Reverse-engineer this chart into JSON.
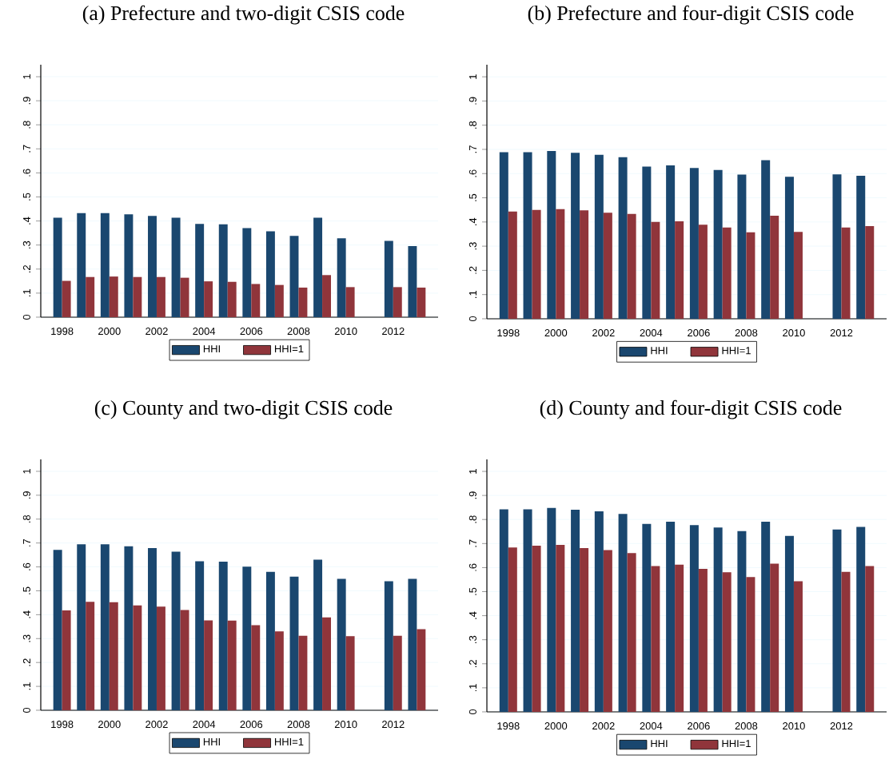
{
  "chart_data": [
    {
      "type": "bar",
      "title": "(a) Prefecture and two-digit CSIS code",
      "x": [
        1998,
        1999,
        2000,
        2001,
        2002,
        2003,
        2004,
        2005,
        2006,
        2007,
        2008,
        2009,
        2010,
        2012,
        2013
      ],
      "series": [
        {
          "name": "HHI",
          "color": "#1a476f",
          "values": [
            0.414,
            0.433,
            0.433,
            0.428,
            0.421,
            0.414,
            0.388,
            0.386,
            0.37,
            0.357,
            0.338,
            0.414,
            0.328,
            0.317,
            0.296
          ]
        },
        {
          "name": "HHI=1",
          "color": "#90353b",
          "values": [
            0.151,
            0.167,
            0.169,
            0.167,
            0.167,
            0.164,
            0.149,
            0.147,
            0.138,
            0.134,
            0.123,
            0.175,
            0.125,
            0.125,
            0.123
          ]
        }
      ],
      "xlim": [
        1997.1,
        2013.9
      ],
      "ylim": [
        0,
        1.05
      ],
      "xticks": [
        1998,
        2000,
        2002,
        2004,
        2006,
        2008,
        2010,
        2012
      ],
      "yticks": [
        0,
        {
          "value": 0.1,
          "label": ".1"
        },
        {
          "value": 0.2,
          "label": ".2"
        },
        {
          "value": 0.3,
          "label": ".3"
        },
        {
          "value": 0.4,
          "label": ".4"
        },
        {
          "value": 0.5,
          "label": ".5"
        },
        {
          "value": 0.6,
          "label": ".6"
        },
        {
          "value": 0.7,
          "label": ".7"
        },
        {
          "value": 0.8,
          "label": ".8"
        },
        {
          "value": 0.9,
          "label": ".9"
        },
        1
      ],
      "grid": "y",
      "legend": "bottom"
    },
    {
      "type": "bar",
      "title": "(b) Prefecture and four-digit CSIS code",
      "x": [
        1998,
        1999,
        2000,
        2001,
        2002,
        2003,
        2004,
        2005,
        2006,
        2007,
        2008,
        2009,
        2010,
        2012,
        2013
      ],
      "series": [
        {
          "name": "HHI",
          "color": "#1a476f",
          "values": [
            0.688,
            0.688,
            0.693,
            0.686,
            0.678,
            0.668,
            0.629,
            0.634,
            0.623,
            0.615,
            0.596,
            0.655,
            0.587,
            0.597,
            0.591
          ]
        },
        {
          "name": "HHI=1",
          "color": "#90353b",
          "values": [
            0.443,
            0.45,
            0.453,
            0.448,
            0.438,
            0.433,
            0.4,
            0.403,
            0.389,
            0.377,
            0.357,
            0.426,
            0.359,
            0.377,
            0.383
          ]
        }
      ],
      "xlim": [
        1997.1,
        2013.9
      ],
      "ylim": [
        0,
        1.05
      ],
      "xticks": [
        1998,
        2000,
        2002,
        2004,
        2006,
        2008,
        2010,
        2012
      ],
      "yticks": [
        0,
        {
          "value": 0.1,
          "label": ".1"
        },
        {
          "value": 0.2,
          "label": ".2"
        },
        {
          "value": 0.3,
          "label": ".3"
        },
        {
          "value": 0.4,
          "label": ".4"
        },
        {
          "value": 0.5,
          "label": ".5"
        },
        {
          "value": 0.6,
          "label": ".6"
        },
        {
          "value": 0.7,
          "label": ".7"
        },
        {
          "value": 0.8,
          "label": ".8"
        },
        {
          "value": 0.9,
          "label": ".9"
        },
        1
      ],
      "grid": "y",
      "legend": "bottom"
    },
    {
      "type": "bar",
      "title": "(c) County and two-digit CSIS code",
      "x": [
        1998,
        1999,
        2000,
        2001,
        2002,
        2003,
        2004,
        2005,
        2006,
        2007,
        2008,
        2009,
        2010,
        2012,
        2013
      ],
      "series": [
        {
          "name": "HHI",
          "color": "#1a476f",
          "values": [
            0.671,
            0.695,
            0.695,
            0.686,
            0.679,
            0.664,
            0.624,
            0.622,
            0.601,
            0.579,
            0.559,
            0.63,
            0.55,
            0.54,
            0.55
          ]
        },
        {
          "name": "HHI=1",
          "color": "#90353b",
          "values": [
            0.418,
            0.454,
            0.452,
            0.439,
            0.434,
            0.42,
            0.376,
            0.375,
            0.356,
            0.33,
            0.312,
            0.389,
            0.31,
            0.312,
            0.339
          ]
        }
      ],
      "xlim": [
        1997.1,
        2013.9
      ],
      "ylim": [
        0,
        1.05
      ],
      "xticks": [
        1998,
        2000,
        2002,
        2004,
        2006,
        2008,
        2010,
        2012
      ],
      "yticks": [
        0,
        {
          "value": 0.1,
          "label": ".1"
        },
        {
          "value": 0.2,
          "label": ".2"
        },
        {
          "value": 0.3,
          "label": ".3"
        },
        {
          "value": 0.4,
          "label": ".4"
        },
        {
          "value": 0.5,
          "label": ".5"
        },
        {
          "value": 0.6,
          "label": ".6"
        },
        {
          "value": 0.7,
          "label": ".7"
        },
        {
          "value": 0.8,
          "label": ".8"
        },
        {
          "value": 0.9,
          "label": ".9"
        },
        1
      ],
      "grid": "y",
      "legend": "bottom"
    },
    {
      "type": "bar",
      "title": "(d) County and four-digit CSIS code",
      "x": [
        1998,
        1999,
        2000,
        2001,
        2002,
        2003,
        2004,
        2005,
        2006,
        2007,
        2008,
        2009,
        2010,
        2012,
        2013
      ],
      "series": [
        {
          "name": "HHI",
          "color": "#1a476f",
          "values": [
            0.842,
            0.842,
            0.848,
            0.841,
            0.834,
            0.823,
            0.782,
            0.791,
            0.777,
            0.767,
            0.752,
            0.791,
            0.732,
            0.758,
            0.769
          ]
        },
        {
          "name": "HHI=1",
          "color": "#90353b",
          "values": [
            0.684,
            0.691,
            0.694,
            0.681,
            0.673,
            0.66,
            0.606,
            0.612,
            0.595,
            0.581,
            0.561,
            0.616,
            0.543,
            0.582,
            0.606
          ]
        }
      ],
      "xlim": [
        1997.1,
        2013.9
      ],
      "ylim": [
        0,
        1.05
      ],
      "xticks": [
        1998,
        2000,
        2002,
        2004,
        2006,
        2008,
        2010,
        2012
      ],
      "yticks": [
        0,
        {
          "value": 0.1,
          "label": ".1"
        },
        {
          "value": 0.2,
          "label": ".2"
        },
        {
          "value": 0.3,
          "label": ".3"
        },
        {
          "value": 0.4,
          "label": ".4"
        },
        {
          "value": 0.5,
          "label": ".5"
        },
        {
          "value": 0.6,
          "label": ".6"
        },
        {
          "value": 0.7,
          "label": ".7"
        },
        {
          "value": 0.8,
          "label": ".8"
        },
        {
          "value": 0.9,
          "label": ".9"
        },
        1
      ],
      "grid": "y",
      "legend": "bottom"
    }
  ]
}
